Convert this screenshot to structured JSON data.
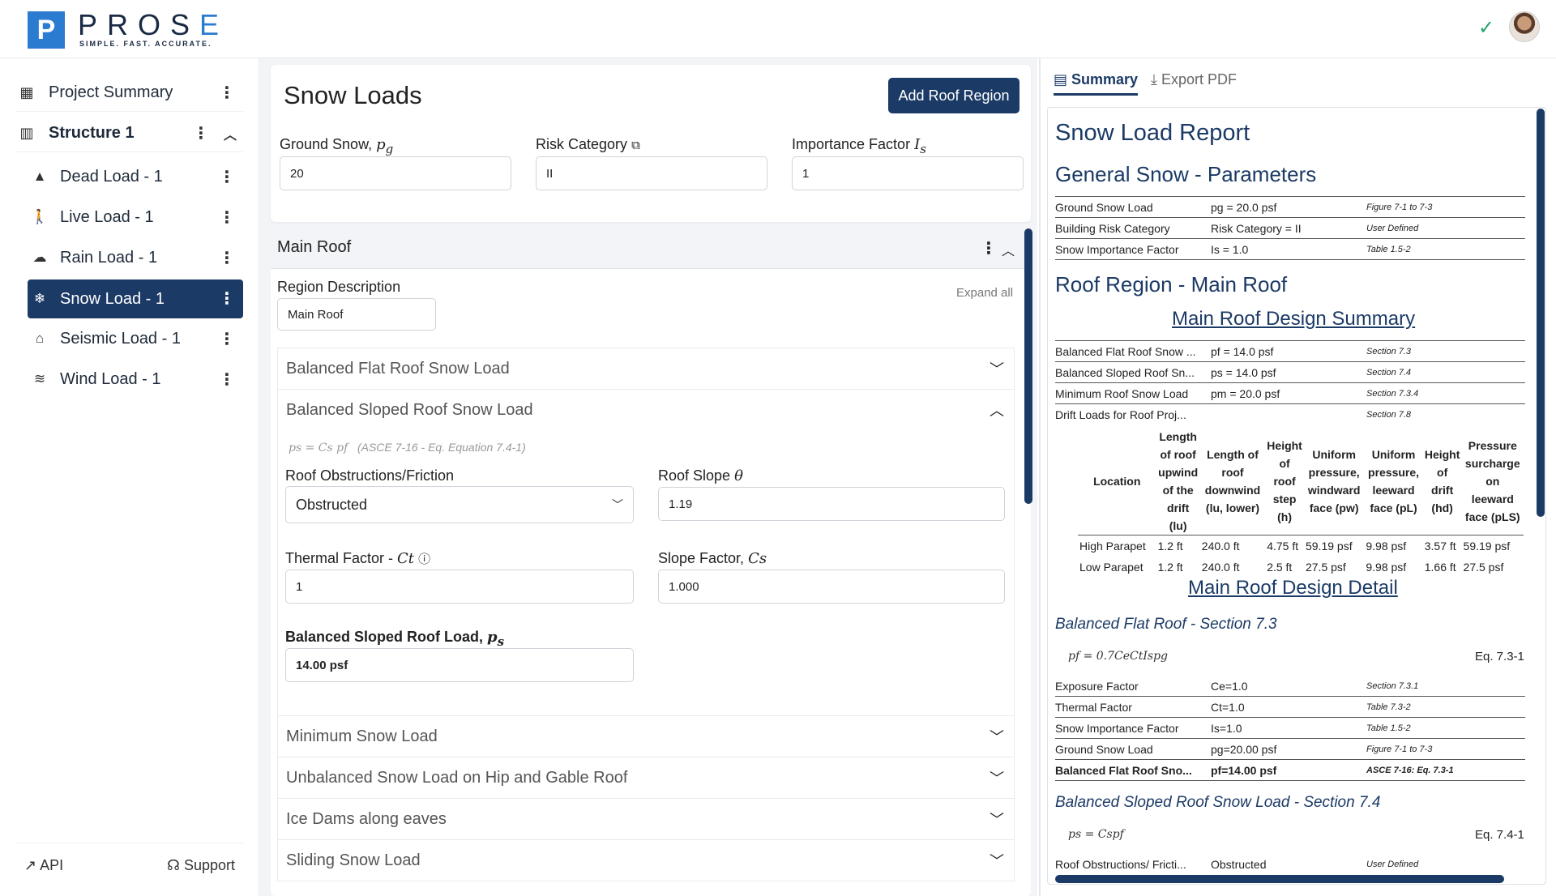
{
  "brand": {
    "logo_letter": "P",
    "name_part1": "PROS",
    "name_part2": "E",
    "tagline": "SIMPLE. FAST. ACCURATE."
  },
  "sidebar": {
    "project_summary": "Project Summary",
    "structure": "Structure 1",
    "loads": [
      {
        "label": "Dead Load - 1",
        "icon": "weight-icon"
      },
      {
        "label": "Live Load - 1",
        "icon": "walking-person-icon"
      },
      {
        "label": "Rain Load - 1",
        "icon": "rain-cloud-icon"
      },
      {
        "label": "Snow Load - 1",
        "icon": "snowflake-icon",
        "active": true
      },
      {
        "label": "Seismic Load - 1",
        "icon": "house-seismic-icon"
      },
      {
        "label": "Wind Load - 1",
        "icon": "wind-icon"
      }
    ],
    "footer": {
      "api": "API",
      "support": "Support"
    }
  },
  "main": {
    "title": "Snow Loads",
    "add_button": "Add Roof Region",
    "ground_snow_label": "Ground Snow, ",
    "ground_snow_sym": "p",
    "ground_snow_sub": "g",
    "ground_snow_value": "20",
    "risk_label": "Risk Category",
    "risk_value": "II",
    "importance_label": "Importance Factor ",
    "importance_sym": "I",
    "importance_sub": "s",
    "importance_value": "1",
    "region": {
      "name": "Main Roof",
      "desc_label": "Region Description",
      "desc_value": "Main Roof",
      "expand_all": "Expand all",
      "sections": {
        "flat": "Balanced Flat Roof Snow Load",
        "sloped": "Balanced Sloped Roof Snow Load",
        "minimum": "Minimum Snow Load",
        "unbalanced": "Unbalanced Snow Load on Hip and Gable Roof",
        "ice": "Ice Dams along eaves",
        "sliding": "Sliding Snow Load"
      },
      "sloped": {
        "formula": "ps = Cs pf",
        "formula_ref": "(ASCE 7-16 - Eq. Equation 7.4-1)",
        "obstruction_label": "Roof Obstructions/Friction",
        "obstruction_value": "Obstructed",
        "slope_label": "Roof Slope ",
        "slope_sym": "θ",
        "slope_value": "1.19",
        "thermal_label": "Thermal Factor - ",
        "thermal_sym": "Ct",
        "thermal_value": "1",
        "slope_factor_label": "Slope Factor, ",
        "slope_factor_sym": "Cs",
        "slope_factor_value": "1.000",
        "result_label": "Balanced Sloped Roof Load, ",
        "result_sym": "p",
        "result_sub": "s",
        "result_value": "14.00 psf"
      }
    }
  },
  "report": {
    "tab_summary": "Summary",
    "tab_export": "Export PDF",
    "title": "Snow Load Report",
    "general_title": "General Snow - Parameters",
    "general_rows": [
      {
        "name": "Ground Snow Load",
        "value": "pg = 20.0 psf",
        "ref": "Figure 7-1 to 7-3"
      },
      {
        "name": "Building Risk Category",
        "value": "Risk Category = II",
        "ref": "User Defined"
      },
      {
        "name": "Snow Importance Factor",
        "value": "Is = 1.0",
        "ref": "Table 1.5-2"
      }
    ],
    "region_title": "Roof Region - Main Roof",
    "summary_link": "Main Roof Design Summary",
    "summary_rows": [
      {
        "name": "Balanced Flat Roof Snow ...",
        "value": "pf = 14.0 psf",
        "ref": "Section 7.3"
      },
      {
        "name": "Balanced Sloped Roof Sn...",
        "value": "ps = 14.0 psf",
        "ref": "Section 7.4"
      },
      {
        "name": "Minimum Roof Snow Load",
        "value": "pm = 20.0 psf",
        "ref": "Section 7.3.4"
      },
      {
        "name": "Drift Loads for Roof Proj...",
        "value": "",
        "ref": "Section 7.8"
      }
    ],
    "drift_headers": [
      "Location",
      "Length of roof upwind of the drift (lu)",
      "Length of roof downwind (lu, lower)",
      "Height of roof step (h)",
      "Uniform pressure, windward face (pw)",
      "Uniform pressure, leeward face (pL)",
      "Height of drift (hd)",
      "Pressure surcharge on leeward face (pLS)"
    ],
    "drift_rows": [
      [
        "High Parapet",
        "1.2 ft",
        "240.0 ft",
        "4.75 ft",
        "59.19 psf",
        "9.98 psf",
        "3.57 ft",
        "59.19 psf"
      ],
      [
        "Low Parapet",
        "1.2 ft",
        "240.0 ft",
        "2.5 ft",
        "27.5 psf",
        "9.98 psf",
        "1.66 ft",
        "27.5 psf"
      ]
    ],
    "detail_link": "Main Roof Design Detail",
    "flat_section": "Balanced Flat Roof - Section 7.3",
    "flat_formula": "pf = 0.7CeCtIspg",
    "flat_eq": "Eq. 7.3-1",
    "flat_rows": [
      {
        "name": "Exposure Factor",
        "value": "Ce=1.0",
        "ref": "Section 7.3.1"
      },
      {
        "name": "Thermal Factor",
        "value": "Ct=1.0",
        "ref": "Table 7.3-2"
      },
      {
        "name": "Snow Importance Factor",
        "value": "Is=1.0",
        "ref": "Table 1.5-2"
      },
      {
        "name": "Ground Snow Load",
        "value": "pg=20.00 psf",
        "ref": "Figure 7-1 to 7-3"
      },
      {
        "name": "Balanced Flat Roof Sno...",
        "value": "pf=14.00 psf",
        "ref": "ASCE 7-16: Eq. 7.3-1"
      }
    ],
    "sloped_section": "Balanced Sloped Roof Snow Load - Section 7.4",
    "sloped_formula": "ps = Cspf",
    "sloped_eq": "Eq. 7.4-1",
    "sloped_row": {
      "name": "Roof Obstructions/ Fricti...",
      "value": "Obstructed",
      "ref": "User Defined"
    }
  }
}
